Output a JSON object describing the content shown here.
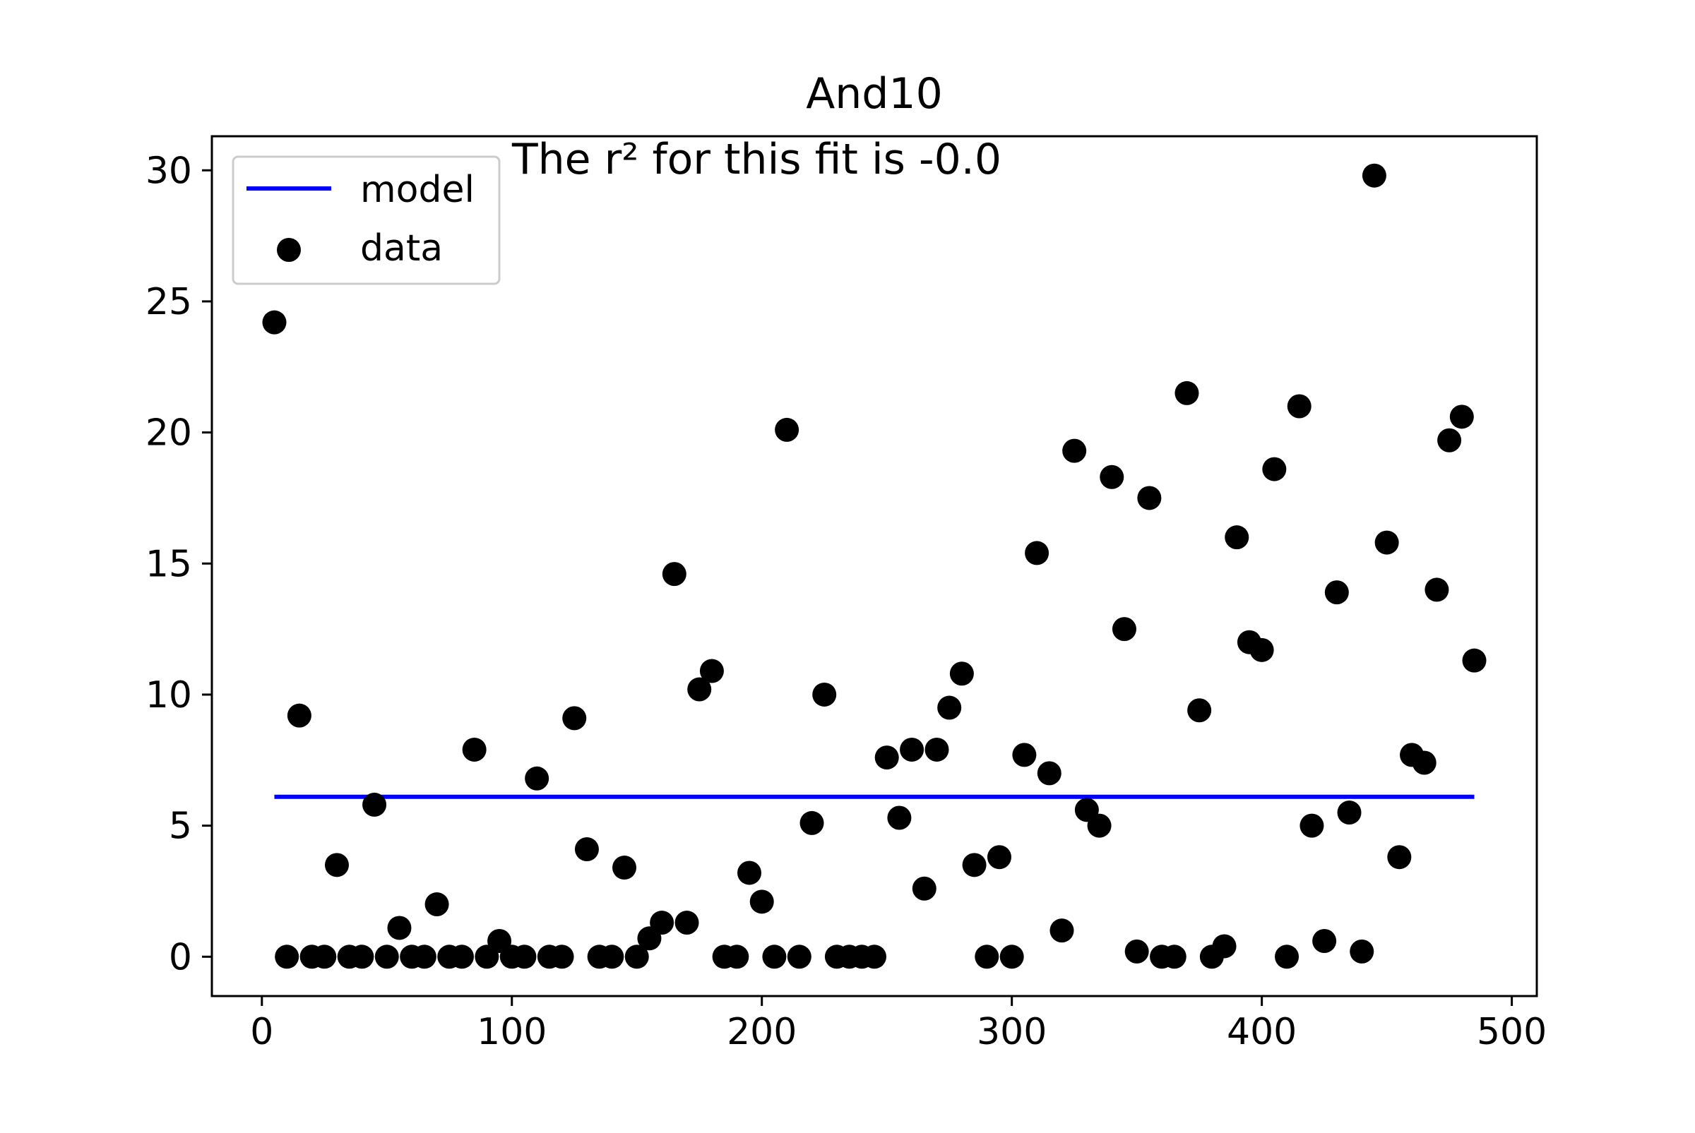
{
  "chart_data": {
    "type": "scatter",
    "title": "And10",
    "annotation": "The r² for this fit is -0.0",
    "xlabel": "",
    "ylabel": "",
    "xlim": [
      -20,
      510
    ],
    "ylim": [
      -1.5,
      31.3
    ],
    "xticks": [
      0,
      100,
      200,
      300,
      400,
      500
    ],
    "yticks": [
      0,
      5,
      10,
      15,
      20,
      25,
      30
    ],
    "grid": false,
    "legend": {
      "position": "upper-left",
      "entries": [
        "model",
        "data"
      ]
    },
    "series": [
      {
        "name": "model",
        "kind": "line",
        "color": "#0000ff",
        "points": [
          [
            5,
            6.1
          ],
          [
            485,
            6.1
          ]
        ]
      },
      {
        "name": "data",
        "kind": "scatter",
        "color": "#000000",
        "points": [
          [
            5,
            24.2
          ],
          [
            10,
            0
          ],
          [
            15,
            9.2
          ],
          [
            20,
            0
          ],
          [
            25,
            0
          ],
          [
            30,
            3.5
          ],
          [
            35,
            0
          ],
          [
            40,
            0
          ],
          [
            45,
            5.8
          ],
          [
            50,
            0
          ],
          [
            55,
            1.1
          ],
          [
            60,
            0
          ],
          [
            65,
            0
          ],
          [
            70,
            2.0
          ],
          [
            75,
            0
          ],
          [
            80,
            0
          ],
          [
            85,
            7.9
          ],
          [
            90,
            0
          ],
          [
            95,
            0.6
          ],
          [
            100,
            0
          ],
          [
            105,
            0
          ],
          [
            110,
            6.8
          ],
          [
            115,
            0
          ],
          [
            120,
            0
          ],
          [
            125,
            9.1
          ],
          [
            130,
            4.1
          ],
          [
            135,
            0
          ],
          [
            140,
            0
          ],
          [
            145,
            3.4
          ],
          [
            150,
            0
          ],
          [
            155,
            0.7
          ],
          [
            160,
            1.3
          ],
          [
            165,
            14.6
          ],
          [
            170,
            1.3
          ],
          [
            175,
            10.2
          ],
          [
            180,
            10.9
          ],
          [
            185,
            0
          ],
          [
            190,
            0
          ],
          [
            195,
            3.2
          ],
          [
            200,
            2.1
          ],
          [
            205,
            0
          ],
          [
            210,
            20.1
          ],
          [
            215,
            0
          ],
          [
            220,
            5.1
          ],
          [
            225,
            10.0
          ],
          [
            230,
            0
          ],
          [
            235,
            0
          ],
          [
            240,
            0
          ],
          [
            245,
            0
          ],
          [
            250,
            7.6
          ],
          [
            255,
            5.3
          ],
          [
            260,
            7.9
          ],
          [
            265,
            2.6
          ],
          [
            270,
            7.9
          ],
          [
            275,
            9.5
          ],
          [
            280,
            10.8
          ],
          [
            285,
            3.5
          ],
          [
            290,
            0
          ],
          [
            295,
            3.8
          ],
          [
            300,
            0
          ],
          [
            305,
            7.7
          ],
          [
            310,
            15.4
          ],
          [
            315,
            7.0
          ],
          [
            320,
            1.0
          ],
          [
            325,
            19.3
          ],
          [
            330,
            5.6
          ],
          [
            335,
            5.0
          ],
          [
            340,
            18.3
          ],
          [
            345,
            12.5
          ],
          [
            350,
            0.2
          ],
          [
            355,
            17.5
          ],
          [
            360,
            0
          ],
          [
            365,
            0
          ],
          [
            370,
            21.5
          ],
          [
            375,
            9.4
          ],
          [
            380,
            0
          ],
          [
            385,
            0.4
          ],
          [
            390,
            16.0
          ],
          [
            395,
            12.0
          ],
          [
            400,
            11.7
          ],
          [
            405,
            18.6
          ],
          [
            410,
            0
          ],
          [
            415,
            21.0
          ],
          [
            420,
            5.0
          ],
          [
            425,
            0.6
          ],
          [
            430,
            13.9
          ],
          [
            435,
            5.5
          ],
          [
            440,
            0.2
          ],
          [
            445,
            29.8
          ],
          [
            450,
            15.8
          ],
          [
            455,
            3.8
          ],
          [
            460,
            7.7
          ],
          [
            465,
            7.4
          ],
          [
            470,
            14.0
          ],
          [
            475,
            19.7
          ],
          [
            480,
            20.6
          ],
          [
            485,
            11.3
          ]
        ]
      }
    ]
  }
}
